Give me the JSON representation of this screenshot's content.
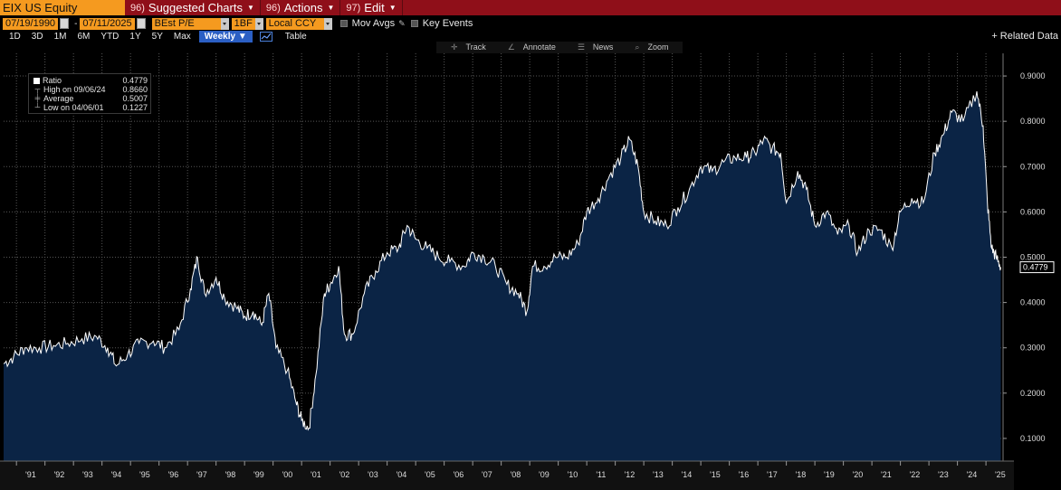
{
  "header": {
    "ticker": "EIX US Equity",
    "menus": [
      {
        "num": "96)",
        "label": "Suggested Charts"
      },
      {
        "num": "96)",
        "label": "Actions"
      },
      {
        "num": "97)",
        "label": "Edit"
      }
    ]
  },
  "controls": {
    "start_date": "07/19/1990",
    "end_date": "07/11/2025",
    "field": "BEst P/E",
    "period_code": "1BF",
    "currency": "Local CCY",
    "mov_avgs": "Mov Avgs",
    "key_events": "Key Events"
  },
  "periods": [
    "1D",
    "3D",
    "1M",
    "6M",
    "YTD",
    "1Y",
    "5Y",
    "Max"
  ],
  "frequency": "Weekly",
  "table_label": "Table",
  "related_data": "+ Related Data",
  "toolbox": {
    "track": "Track",
    "annotate": "Annotate",
    "news": "News",
    "zoom": "Zoom"
  },
  "legend": {
    "series": "Ratio",
    "last": "0.4779",
    "high_label": "High on 09/06/24",
    "high": "0.8660",
    "avg_label": "Average",
    "avg": "0.5007",
    "low_label": "Low on 04/06/01",
    "low": "0.1227"
  },
  "last_value_label": "0.4779",
  "colors": {
    "fill": "#0b2445",
    "line": "#ffffff",
    "accent": "#f59a1f",
    "topbar": "#8f0f19"
  },
  "chart_data": {
    "type": "area",
    "series": [
      {
        "name": "Ratio",
        "points": [
          [
            1990.55,
            0.265
          ],
          [
            1990.9,
            0.28
          ],
          [
            1991.3,
            0.3
          ],
          [
            1991.8,
            0.3
          ],
          [
            1992.3,
            0.305
          ],
          [
            1992.8,
            0.31
          ],
          [
            1993.3,
            0.32
          ],
          [
            1993.8,
            0.325
          ],
          [
            1994.2,
            0.3
          ],
          [
            1994.5,
            0.26
          ],
          [
            1994.9,
            0.285
          ],
          [
            1995.3,
            0.31
          ],
          [
            1995.8,
            0.315
          ],
          [
            1996.2,
            0.3
          ],
          [
            1996.7,
            0.34
          ],
          [
            1997.1,
            0.43
          ],
          [
            1997.35,
            0.5
          ],
          [
            1997.6,
            0.42
          ],
          [
            1998.0,
            0.455
          ],
          [
            1998.3,
            0.41
          ],
          [
            1998.7,
            0.39
          ],
          [
            1999.0,
            0.37
          ],
          [
            1999.3,
            0.38
          ],
          [
            1999.6,
            0.35
          ],
          [
            1999.85,
            0.42
          ],
          [
            2000.1,
            0.3
          ],
          [
            2000.5,
            0.25
          ],
          [
            2000.8,
            0.18
          ],
          [
            2001.0,
            0.14
          ],
          [
            2001.26,
            0.1227
          ],
          [
            2001.5,
            0.24
          ],
          [
            2001.8,
            0.42
          ],
          [
            2002.0,
            0.44
          ],
          [
            2002.3,
            0.48
          ],
          [
            2002.5,
            0.33
          ],
          [
            2002.8,
            0.33
          ],
          [
            2003.2,
            0.42
          ],
          [
            2003.6,
            0.47
          ],
          [
            2004.0,
            0.51
          ],
          [
            2004.4,
            0.52
          ],
          [
            2004.7,
            0.57
          ],
          [
            2005.0,
            0.54
          ],
          [
            2005.4,
            0.52
          ],
          [
            2005.8,
            0.5
          ],
          [
            2006.2,
            0.49
          ],
          [
            2006.7,
            0.48
          ],
          [
            2007.0,
            0.51
          ],
          [
            2007.4,
            0.5
          ],
          [
            2007.8,
            0.48
          ],
          [
            2008.2,
            0.44
          ],
          [
            2008.6,
            0.42
          ],
          [
            2008.9,
            0.38
          ],
          [
            2009.1,
            0.48
          ],
          [
            2009.5,
            0.48
          ],
          [
            2009.9,
            0.5
          ],
          [
            2010.3,
            0.5
          ],
          [
            2010.7,
            0.53
          ],
          [
            2011.0,
            0.6
          ],
          [
            2011.4,
            0.63
          ],
          [
            2011.8,
            0.68
          ],
          [
            2012.2,
            0.72
          ],
          [
            2012.5,
            0.76
          ],
          [
            2012.8,
            0.7
          ],
          [
            2013.0,
            0.6
          ],
          [
            2013.4,
            0.58
          ],
          [
            2013.8,
            0.57
          ],
          [
            2014.2,
            0.61
          ],
          [
            2014.6,
            0.65
          ],
          [
            2015.0,
            0.7
          ],
          [
            2015.4,
            0.69
          ],
          [
            2015.8,
            0.71
          ],
          [
            2016.2,
            0.72
          ],
          [
            2016.6,
            0.72
          ],
          [
            2016.9,
            0.73
          ],
          [
            2017.2,
            0.76
          ],
          [
            2017.5,
            0.74
          ],
          [
            2017.8,
            0.73
          ],
          [
            2018.0,
            0.62
          ],
          [
            2018.4,
            0.69
          ],
          [
            2018.7,
            0.65
          ],
          [
            2019.0,
            0.57
          ],
          [
            2019.4,
            0.6
          ],
          [
            2019.8,
            0.55
          ],
          [
            2020.2,
            0.57
          ],
          [
            2020.5,
            0.51
          ],
          [
            2020.9,
            0.56
          ],
          [
            2021.3,
            0.56
          ],
          [
            2021.7,
            0.52
          ],
          [
            2022.0,
            0.6
          ],
          [
            2022.4,
            0.63
          ],
          [
            2022.8,
            0.62
          ],
          [
            2023.2,
            0.73
          ],
          [
            2023.5,
            0.77
          ],
          [
            2023.8,
            0.82
          ],
          [
            2024.2,
            0.8
          ],
          [
            2024.68,
            0.866
          ],
          [
            2024.9,
            0.79
          ],
          [
            2025.05,
            0.62
          ],
          [
            2025.2,
            0.52
          ],
          [
            2025.36,
            0.5
          ],
          [
            2025.52,
            0.4779
          ]
        ]
      }
    ],
    "xlabel": "",
    "ylabel": "",
    "xlim": [
      1990.55,
      2025.6
    ],
    "ylim": [
      0.05,
      0.95
    ],
    "xticks": [
      "'91",
      "'92",
      "'93",
      "'94",
      "'95",
      "'96",
      "'97",
      "'98",
      "'99",
      "'00",
      "'01",
      "'02",
      "'03",
      "'04",
      "'05",
      "'06",
      "'07",
      "'08",
      "'09",
      "'10",
      "'11",
      "'12",
      "'13",
      "'14",
      "'15",
      "'16",
      "'17",
      "'18",
      "'19",
      "'20",
      "'21",
      "'22",
      "'23",
      "'24",
      "'25"
    ],
    "yticks": [
      0.1,
      0.2,
      0.3,
      0.4,
      0.5,
      0.6,
      0.7,
      0.8,
      0.9
    ],
    "ytick_labels": [
      "0.1000",
      "0.2000",
      "0.3000",
      "0.4000",
      "0.5000",
      "0.6000",
      "0.7000",
      "0.8000",
      "0.9000"
    ],
    "grid": true
  }
}
